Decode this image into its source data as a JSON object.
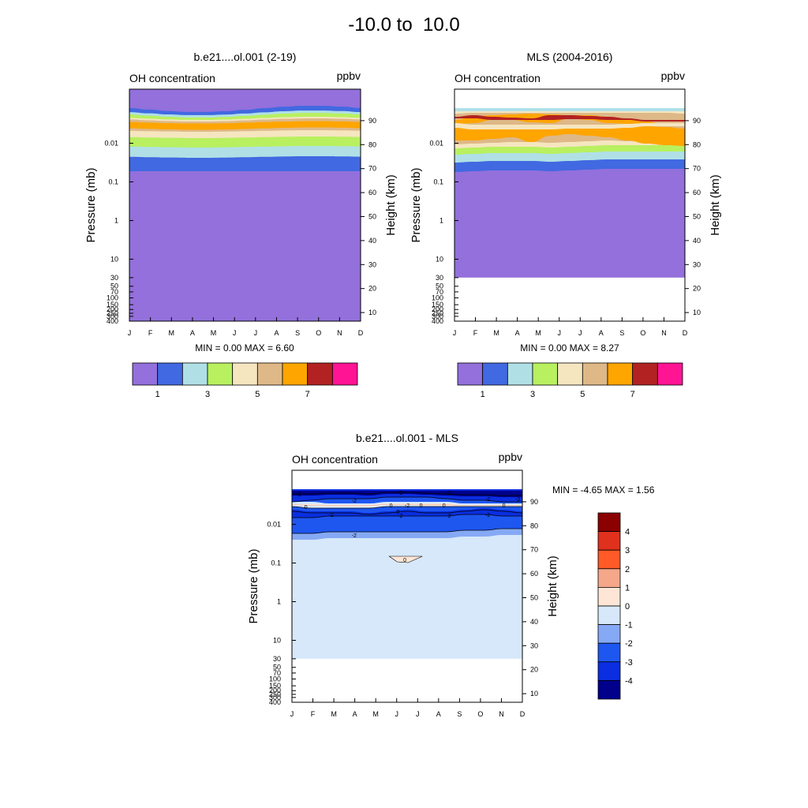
{
  "title": "-10.0 to  10.0",
  "chart_data": [
    {
      "type": "contour",
      "title": "b.e21....ol.001 (2-19)",
      "left_label": "OH concentration",
      "right_label": "ppbv",
      "ylabel": "Pressure (mb)",
      "y2label": "Height (km)",
      "x_ticks": [
        "J",
        "F",
        "M",
        "A",
        "M",
        "J",
        "J",
        "A",
        "S",
        "O",
        "N",
        "D"
      ],
      "y_ticks": [
        "0.01",
        "0.1",
        "1",
        "10",
        "30",
        "50",
        "70",
        "100",
        "150",
        "200",
        "250",
        "300",
        "400"
      ],
      "y2_ticks": [
        "90",
        "80",
        "70",
        "60",
        "50",
        "40",
        "30",
        "20",
        "10"
      ],
      "stats": "MIN =   0.00  MAX =   6.60",
      "min": 0.0,
      "max": 6.6,
      "levels": [
        1,
        2,
        3,
        4,
        5,
        6,
        7,
        8
      ],
      "colorbar_labels": [
        "1",
        "3",
        "5",
        "7"
      ],
      "colors": [
        "#9370DB",
        "#4169E1",
        "#B0E0E6",
        "#B8F060",
        "#F5E6C0",
        "#DEB887",
        "#FFA500",
        "#B22222",
        "#FF1493"
      ],
      "valid_bottom": "400 mb"
    },
    {
      "type": "contour",
      "title": "MLS (2004-2016)",
      "left_label": "OH concentration",
      "right_label": "ppbv",
      "ylabel": "Pressure (mb)",
      "y2label": "Height (km)",
      "x_ticks": [
        "J",
        "F",
        "M",
        "A",
        "M",
        "J",
        "J",
        "A",
        "S",
        "O",
        "N",
        "D"
      ],
      "y_ticks": [
        "0.01",
        "0.1",
        "1",
        "10",
        "30",
        "50",
        "70",
        "100",
        "150",
        "200",
        "250",
        "300",
        "400"
      ],
      "y2_ticks": [
        "90",
        "80",
        "70",
        "60",
        "50",
        "40",
        "30",
        "20",
        "10"
      ],
      "stats": "MIN =   0.00  MAX =   8.27",
      "min": 0.0,
      "max": 8.27,
      "levels": [
        1,
        2,
        3,
        4,
        5,
        6,
        7,
        8
      ],
      "colorbar_labels": [
        "1",
        "3",
        "5",
        "7"
      ],
      "colors": [
        "#9370DB",
        "#4169E1",
        "#B0E0E6",
        "#B8F060",
        "#F5E6C0",
        "#DEB887",
        "#FFA500",
        "#B22222",
        "#FF1493"
      ],
      "valid_bottom": "30 mb"
    },
    {
      "type": "contour",
      "title": "b.e21....ol.001 - MLS",
      "left_label": "OH concentration",
      "right_label": "ppbv",
      "ylabel": "Pressure (mb)",
      "y2label": "Height (km)",
      "x_ticks": [
        "J",
        "F",
        "M",
        "A",
        "M",
        "J",
        "J",
        "A",
        "S",
        "O",
        "N",
        "D"
      ],
      "y_ticks": [
        "0.01",
        "0.1",
        "1",
        "10",
        "30",
        "50",
        "70",
        "100",
        "150",
        "200",
        "250",
        "300",
        "400"
      ],
      "y2_ticks": [
        "90",
        "80",
        "70",
        "60",
        "50",
        "40",
        "30",
        "20",
        "10"
      ],
      "stats": "MIN =  -4.65  MAX =   1.56",
      "min": -4.65,
      "max": 1.56,
      "levels": [
        -4,
        -3,
        -2,
        -1,
        0,
        1,
        2,
        3,
        4
      ],
      "colorbar_labels": [
        "4",
        "3",
        "2",
        "1",
        "0",
        "-1",
        "-2",
        "-3",
        "-4"
      ],
      "colors": [
        "#8B0000",
        "#E0301E",
        "#FF5A28",
        "#F5A78A",
        "#FDE6D6",
        "#D6E8FA",
        "#86A9F5",
        "#1E56F0",
        "#0A2EE0",
        "#00008B"
      ],
      "contour_labels": [
        "-2",
        "-2",
        "-2",
        "-2",
        "-2",
        "-2",
        "0",
        "0",
        "0",
        "0",
        "0",
        "0",
        "-2",
        "-2",
        "-2",
        "-2",
        "-2",
        "-2",
        "0"
      ],
      "valid_bottom": "30 mb"
    }
  ]
}
